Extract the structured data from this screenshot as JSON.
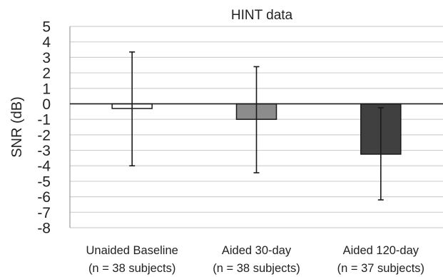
{
  "chart_data": {
    "type": "bar",
    "title": "HINT data",
    "xlabel": "",
    "ylabel": "SNR (dB)",
    "ylim": [
      -8,
      5
    ],
    "ytick_step": 1,
    "grid": true,
    "legend": "none",
    "categories": [
      {
        "line1": "Unaided Baseline",
        "line2": "(n = 38 subjects)"
      },
      {
        "line1": "Aided 30-day",
        "line2": "(n = 38 subjects)"
      },
      {
        "line1": "Aided 120-day",
        "line2": "(n = 37 subjects)"
      }
    ],
    "values": [
      -0.3,
      -1.0,
      -3.25
    ],
    "error_low": [
      -4.0,
      -4.45,
      -6.2
    ],
    "error_high": [
      3.35,
      2.4,
      -0.25
    ],
    "colors": [
      "#ffffff",
      "#8c8c8c",
      "#404040"
    ]
  }
}
